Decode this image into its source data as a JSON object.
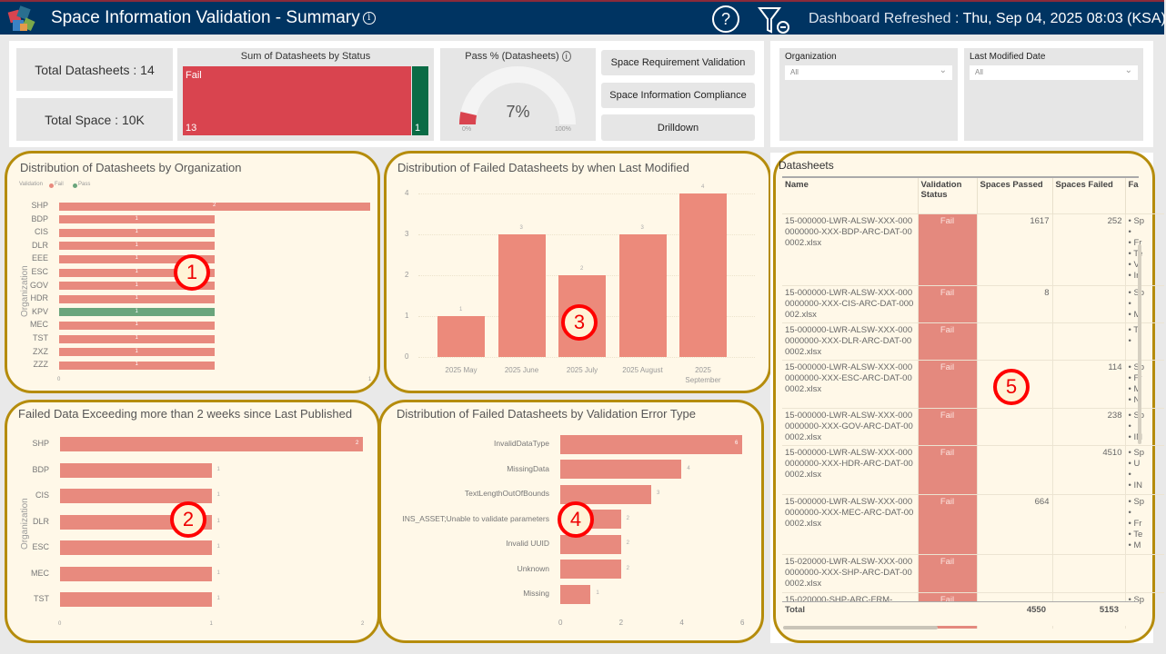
{
  "header": {
    "title": "Space Information Validation - Summary",
    "info_icon": "i",
    "help_icon": "?",
    "refreshed_label": "Dashboard Refreshed : ",
    "refreshed_value": "Thu, Sep 04, 2025 08:03 (KSA)"
  },
  "kpis": {
    "total_datasheets": "Total Datasheets : 14",
    "total_space": "Total Space : 10K"
  },
  "status_treemap": {
    "title": "Sum of Datasheets by Status",
    "fail_label": "Fail",
    "fail_value": "13",
    "pass_value": "1",
    "colors": {
      "fail": "#d9444f",
      "pass": "#0a6b45"
    }
  },
  "gauge": {
    "title": "Pass % (Datasheets)",
    "value_label": "7%",
    "value": 7,
    "min": "0%",
    "max": "100%"
  },
  "nav_buttons": [
    "Space Requirement Validation",
    "Space Information Compliance",
    "Drilldown"
  ],
  "filters": [
    {
      "label": "Organization",
      "value": "All"
    },
    {
      "label": "Last Modified Date",
      "value": "All"
    }
  ],
  "annotations": [
    "1",
    "2",
    "3",
    "4",
    "5"
  ],
  "chart_data": [
    {
      "type": "bar",
      "orientation": "horizontal",
      "title": "Distribution of Datasheets by Organization",
      "ylabel": "Organization",
      "legend": {
        "title": "Validation",
        "entries": [
          {
            "name": "Fail",
            "color": "#e88a7e"
          },
          {
            "name": "Pass",
            "color": "#6aa57c"
          }
        ],
        "position": "top-left"
      },
      "categories": [
        "SHP",
        "BDP",
        "CIS",
        "DLR",
        "EEE",
        "ESC",
        "GOV",
        "HDR",
        "KPV",
        "MEC",
        "TST",
        "ZXZ",
        "ZZZ"
      ],
      "values": [
        2,
        1,
        1,
        1,
        1,
        1,
        1,
        1,
        1,
        1,
        1,
        1,
        1
      ],
      "status": [
        "Fail",
        "Fail",
        "Fail",
        "Fail",
        "Fail",
        "Fail",
        "Fail",
        "Fail",
        "Pass",
        "Fail",
        "Fail",
        "Fail",
        "Fail"
      ],
      "xticks": [
        "0",
        "1"
      ],
      "xlim": [
        0,
        2
      ]
    },
    {
      "type": "bar",
      "orientation": "horizontal",
      "title": "Failed Data Exceeding more than 2 weeks since Last Published",
      "ylabel": "Organization",
      "categories": [
        "SHP",
        "BDP",
        "CIS",
        "DLR",
        "ESC",
        "MEC",
        "TST"
      ],
      "values": [
        2,
        1,
        1,
        1,
        1,
        1,
        1
      ],
      "xticks": [
        "0",
        "1",
        "2"
      ],
      "xlim": [
        0,
        2
      ]
    },
    {
      "type": "bar",
      "orientation": "vertical",
      "title": "Distribution of Failed Datasheets by when Last Modified",
      "categories": [
        "2025 May",
        "2025 June",
        "2025 July",
        "2025 August",
        "2025 September"
      ],
      "values": [
        1,
        3,
        2,
        3,
        4
      ],
      "yticks": [
        "0",
        "1",
        "2",
        "3",
        "4"
      ],
      "ylim": [
        0,
        4
      ],
      "grid": true
    },
    {
      "type": "bar",
      "orientation": "horizontal",
      "title": "Distribution of Failed Datasheets by Validation Error Type",
      "categories": [
        "InvalidDataType",
        "MissingData",
        "TextLengthOutOfBounds",
        "INS_ASSET;Unable to validate parameters",
        "Invalid UUID",
        "Unknown",
        "Missing"
      ],
      "values": [
        6,
        4,
        3,
        2,
        2,
        2,
        1
      ],
      "xticks": [
        "0",
        "2",
        "4",
        "6"
      ],
      "xlim": [
        0,
        6
      ]
    }
  ],
  "datasheets": {
    "title": "Datasheets",
    "columns": [
      "Name",
      "Validation Status",
      "Spaces Passed",
      "Spaces Failed",
      "Fa"
    ],
    "rows": [
      {
        "name": "15-000000-LWR-ALSW-XXX-0000000000-XXX-BDP-ARC-DAT-000002.xlsx",
        "status": "Fail",
        "passed": "1617",
        "failed": "252",
        "errors": "• Sp\n•\n• Fr\n• Te\n• V\n• Ir"
      },
      {
        "name": "15-000000-LWR-ALSW-XXX-0000000000-XXX-CIS-ARC-DAT-000002.xlsx",
        "status": "Fail",
        "passed": "8",
        "failed": "",
        "errors": "• Sp\n•\n• M"
      },
      {
        "name": "15-000000-LWR-ALSW-XXX-0000000000-XXX-DLR-ARC-DAT-000002.xlsx",
        "status": "Fail",
        "passed": "",
        "failed": "",
        "errors": "• Tl\n•"
      },
      {
        "name": "15-000000-LWR-ALSW-XXX-0000000000-XXX-ESC-ARC-DAT-000002.xlsx",
        "status": "Fail",
        "passed": "",
        "failed": "114",
        "errors": "• Sp\n• Fr\n• M\n• N"
      },
      {
        "name": "15-000000-LWR-ALSW-XXX-0000000000-XXX-GOV-ARC-DAT-000002.xlsx",
        "status": "Fail",
        "passed": "",
        "failed": "238",
        "errors": "• Sp\n•\n• IN"
      },
      {
        "name": "15-000000-LWR-ALSW-XXX-0000000000-XXX-HDR-ARC-DAT-000002.xlsx",
        "status": "Fail",
        "passed": "",
        "failed": "4510",
        "errors": "• Sp\n• U\n•\n• IN"
      },
      {
        "name": "15-000000-LWR-ALSW-XXX-0000000000-XXX-MEC-ARC-DAT-000002.xlsx",
        "status": "Fail",
        "passed": "664",
        "failed": "",
        "errors": "• Sp\n•\n• Fr\n• Te\n• M"
      },
      {
        "name": "15-020000-LWR-ALSW-XXX-0000000000-XXX-SHP-ARC-DAT-000002.xlsx",
        "status": "Fail",
        "passed": "",
        "failed": "",
        "errors": ""
      },
      {
        "name": "15-020000-SHP-ARC-FRM-",
        "status": "Fail",
        "passed": "",
        "failed": "",
        "errors": "• Sp"
      }
    ],
    "total": {
      "label": "Total",
      "passed": "4550",
      "failed": "5153"
    }
  }
}
